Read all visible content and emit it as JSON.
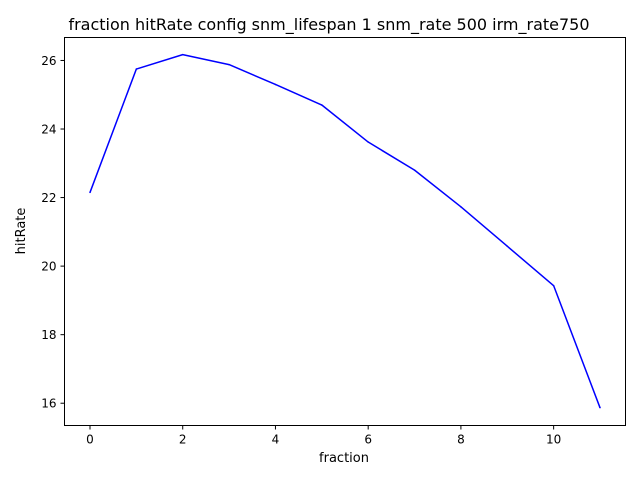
{
  "chart_data": {
    "type": "line",
    "title": "fraction hitRate config snm_lifespan 1 snm_rate 500 irm_rate750",
    "xlabel": "fraction",
    "ylabel": "hitRate",
    "xlim": [
      -0.55,
      11.55
    ],
    "ylim": [
      15.35,
      26.67
    ],
    "xticks": [
      0,
      2,
      4,
      6,
      8,
      10
    ],
    "yticks": [
      16,
      18,
      20,
      22,
      24,
      26
    ],
    "grid": false,
    "series": [
      {
        "color": "#0000ff",
        "x": [
          0,
          1,
          2,
          3,
          4,
          5,
          6,
          7,
          8,
          9,
          10,
          11
        ],
        "values": [
          22.15,
          25.75,
          26.17,
          25.88,
          25.3,
          24.7,
          23.62,
          22.8,
          21.73,
          20.58,
          19.43,
          15.87
        ]
      }
    ]
  }
}
